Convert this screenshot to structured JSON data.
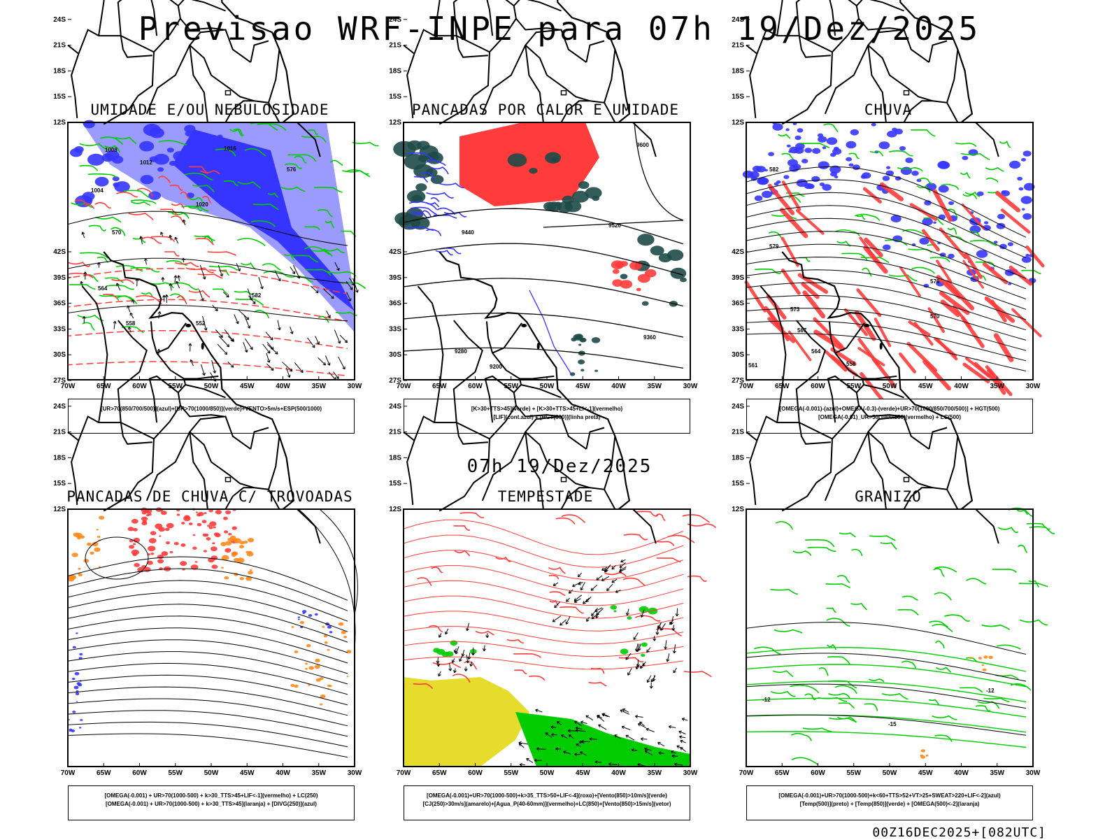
{
  "header": {
    "title": "Previsao WRF-INPE  para 07h 19/Dez/2025"
  },
  "mid_label": "07h 19/Dez/2025",
  "footer": "00Z16DEC2025+[082UTC]",
  "axes": {
    "lat_ticks": [
      "12S",
      "15S",
      "18S",
      "21S",
      "24S",
      "27S",
      "30S",
      "33S",
      "36S",
      "39S",
      "42S"
    ],
    "lon_ticks": [
      "70W",
      "65W",
      "60W",
      "55W",
      "50W",
      "45W",
      "40W",
      "35W",
      "30W"
    ]
  },
  "colors": {
    "blue": "#3535ff",
    "light_blue": "#9a9aff",
    "green": "#00cc00",
    "red": "#ff3b3b",
    "dark_teal": "#1e4a48",
    "orange": "#ff8a1c",
    "yellow": "#e6dc2c",
    "black": "#000000"
  },
  "panels": [
    {
      "id": "umidade",
      "title": "UMIDADE E/OU NEBULOSIDADE",
      "legend": [
        "[UR>70(850/700/500)](azul)+[UR>70(1000/850)](verde)+VENTO>5m/s+ESP(500/1000)"
      ],
      "contour_labels": [
        "1008",
        "1012",
        "1016",
        "1020",
        "1004",
        "570",
        "564",
        "558",
        "552",
        "582",
        "576"
      ]
    },
    {
      "id": "calor",
      "title": "PANCADAS POR CALOR E UMIDADE",
      "legend": [
        "[K>30+TTS>45](verde) + [K>30+TTS>45+LI<-1](vermelho)",
        "[LIF](cont.azul) + [HGT(300)](linha preta)"
      ],
      "contour_labels": [
        "9600",
        "9520",
        "9440",
        "9360",
        "9280",
        "9200"
      ]
    },
    {
      "id": "chuva",
      "title": "CHUVA",
      "legend": [
        "[OMEGA(-0.001)-(azul)+OMEGA(-0.3)-(verde)+UR>70(1000/850/700/500)] + HGT(500)",
        "[OMEGA(-0.01)_UR>50(1000/850)(vermelho) + LC(500)"
      ],
      "contour_labels": [
        "582",
        "579",
        "576",
        "573",
        "570",
        "567",
        "564",
        "561",
        "558"
      ]
    },
    {
      "id": "trovoadas",
      "title": "PANCADAS DE CHUVA C/ TROVOADAS",
      "legend": [
        "[OMEGA(-0.001) + UR>70(1000-500) + k>30_TTS>45+LIF<-1](vermelho) + LC(250)",
        "[OMEGA(-0.001) + UR>70(1000-500) + k>30_TTS>45](laranja) + [DIVG(250)](azul)"
      ],
      "contour_labels": []
    },
    {
      "id": "tempestade",
      "title": "TEMPESTADE",
      "legend": [
        "[OMEGA(-0.001)+UR>70(1000-500)+k>35_TTS>50+LIF<-4](roxo)+[Vento(850)>10m/s](verde)",
        "[CJ(250)>30m/s](amarelo)+[Agua_P(40-60mm)](vermelho)+LC(850)+[Vento(850)>15m/s](vetor)"
      ],
      "contour_labels": []
    },
    {
      "id": "granizo",
      "title": "GRANIZO",
      "legend": [
        "[OMEGA(-0.001)+UR>70(1000-500)+k<60+TTS>52+VT>25+SWEAT>220+LIF<-2](azul)",
        "[Temp(500)](preto) + [Temp(850)](verde) + [OMEGA(500)<-2](laranja)"
      ],
      "contour_labels": [
        "-12",
        "-12",
        "-15"
      ]
    }
  ]
}
